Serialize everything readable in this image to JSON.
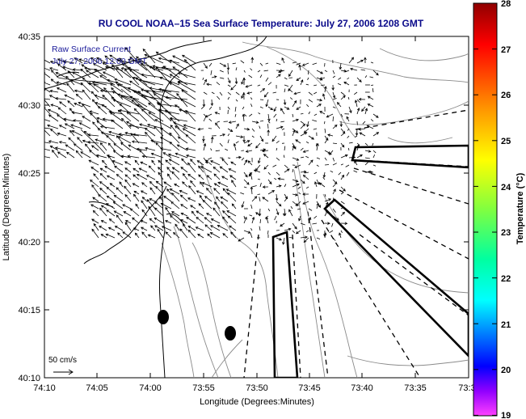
{
  "title": "RU COOL  NOAA–15  Sea Surface Temperature:  July 27, 2006 1208 GMT",
  "annotation": {
    "line1": "Raw Surface Current",
    "line2": "July 27, 2006 12:00 GMT"
  },
  "xlabel": "Longitude (Degrees:Minutes)",
  "ylabel": "Latitude (Degrees:Minutes)",
  "xticks": [
    "74:10",
    "74:05",
    "74:00",
    "73:55",
    "73:50",
    "73:45",
    "73:40",
    "73:35",
    "73:3"
  ],
  "yticks": [
    "40:35",
    "40:30",
    "40:25",
    "40:20",
    "40:15",
    "40:10"
  ],
  "scale_label": "50 cm/s",
  "colorbar": {
    "label": "Temperature (°C)",
    "ticks": [
      "28",
      "27",
      "26",
      "25",
      "24",
      "23",
      "22",
      "21",
      "20",
      "19"
    ],
    "colors": [
      "#b00000",
      "#ff2000",
      "#ff9000",
      "#ffff00",
      "#a0ff40",
      "#00ff80",
      "#00ffff",
      "#0080ff",
      "#0000ff",
      "#8000ff",
      "#ff40ff"
    ]
  }
}
